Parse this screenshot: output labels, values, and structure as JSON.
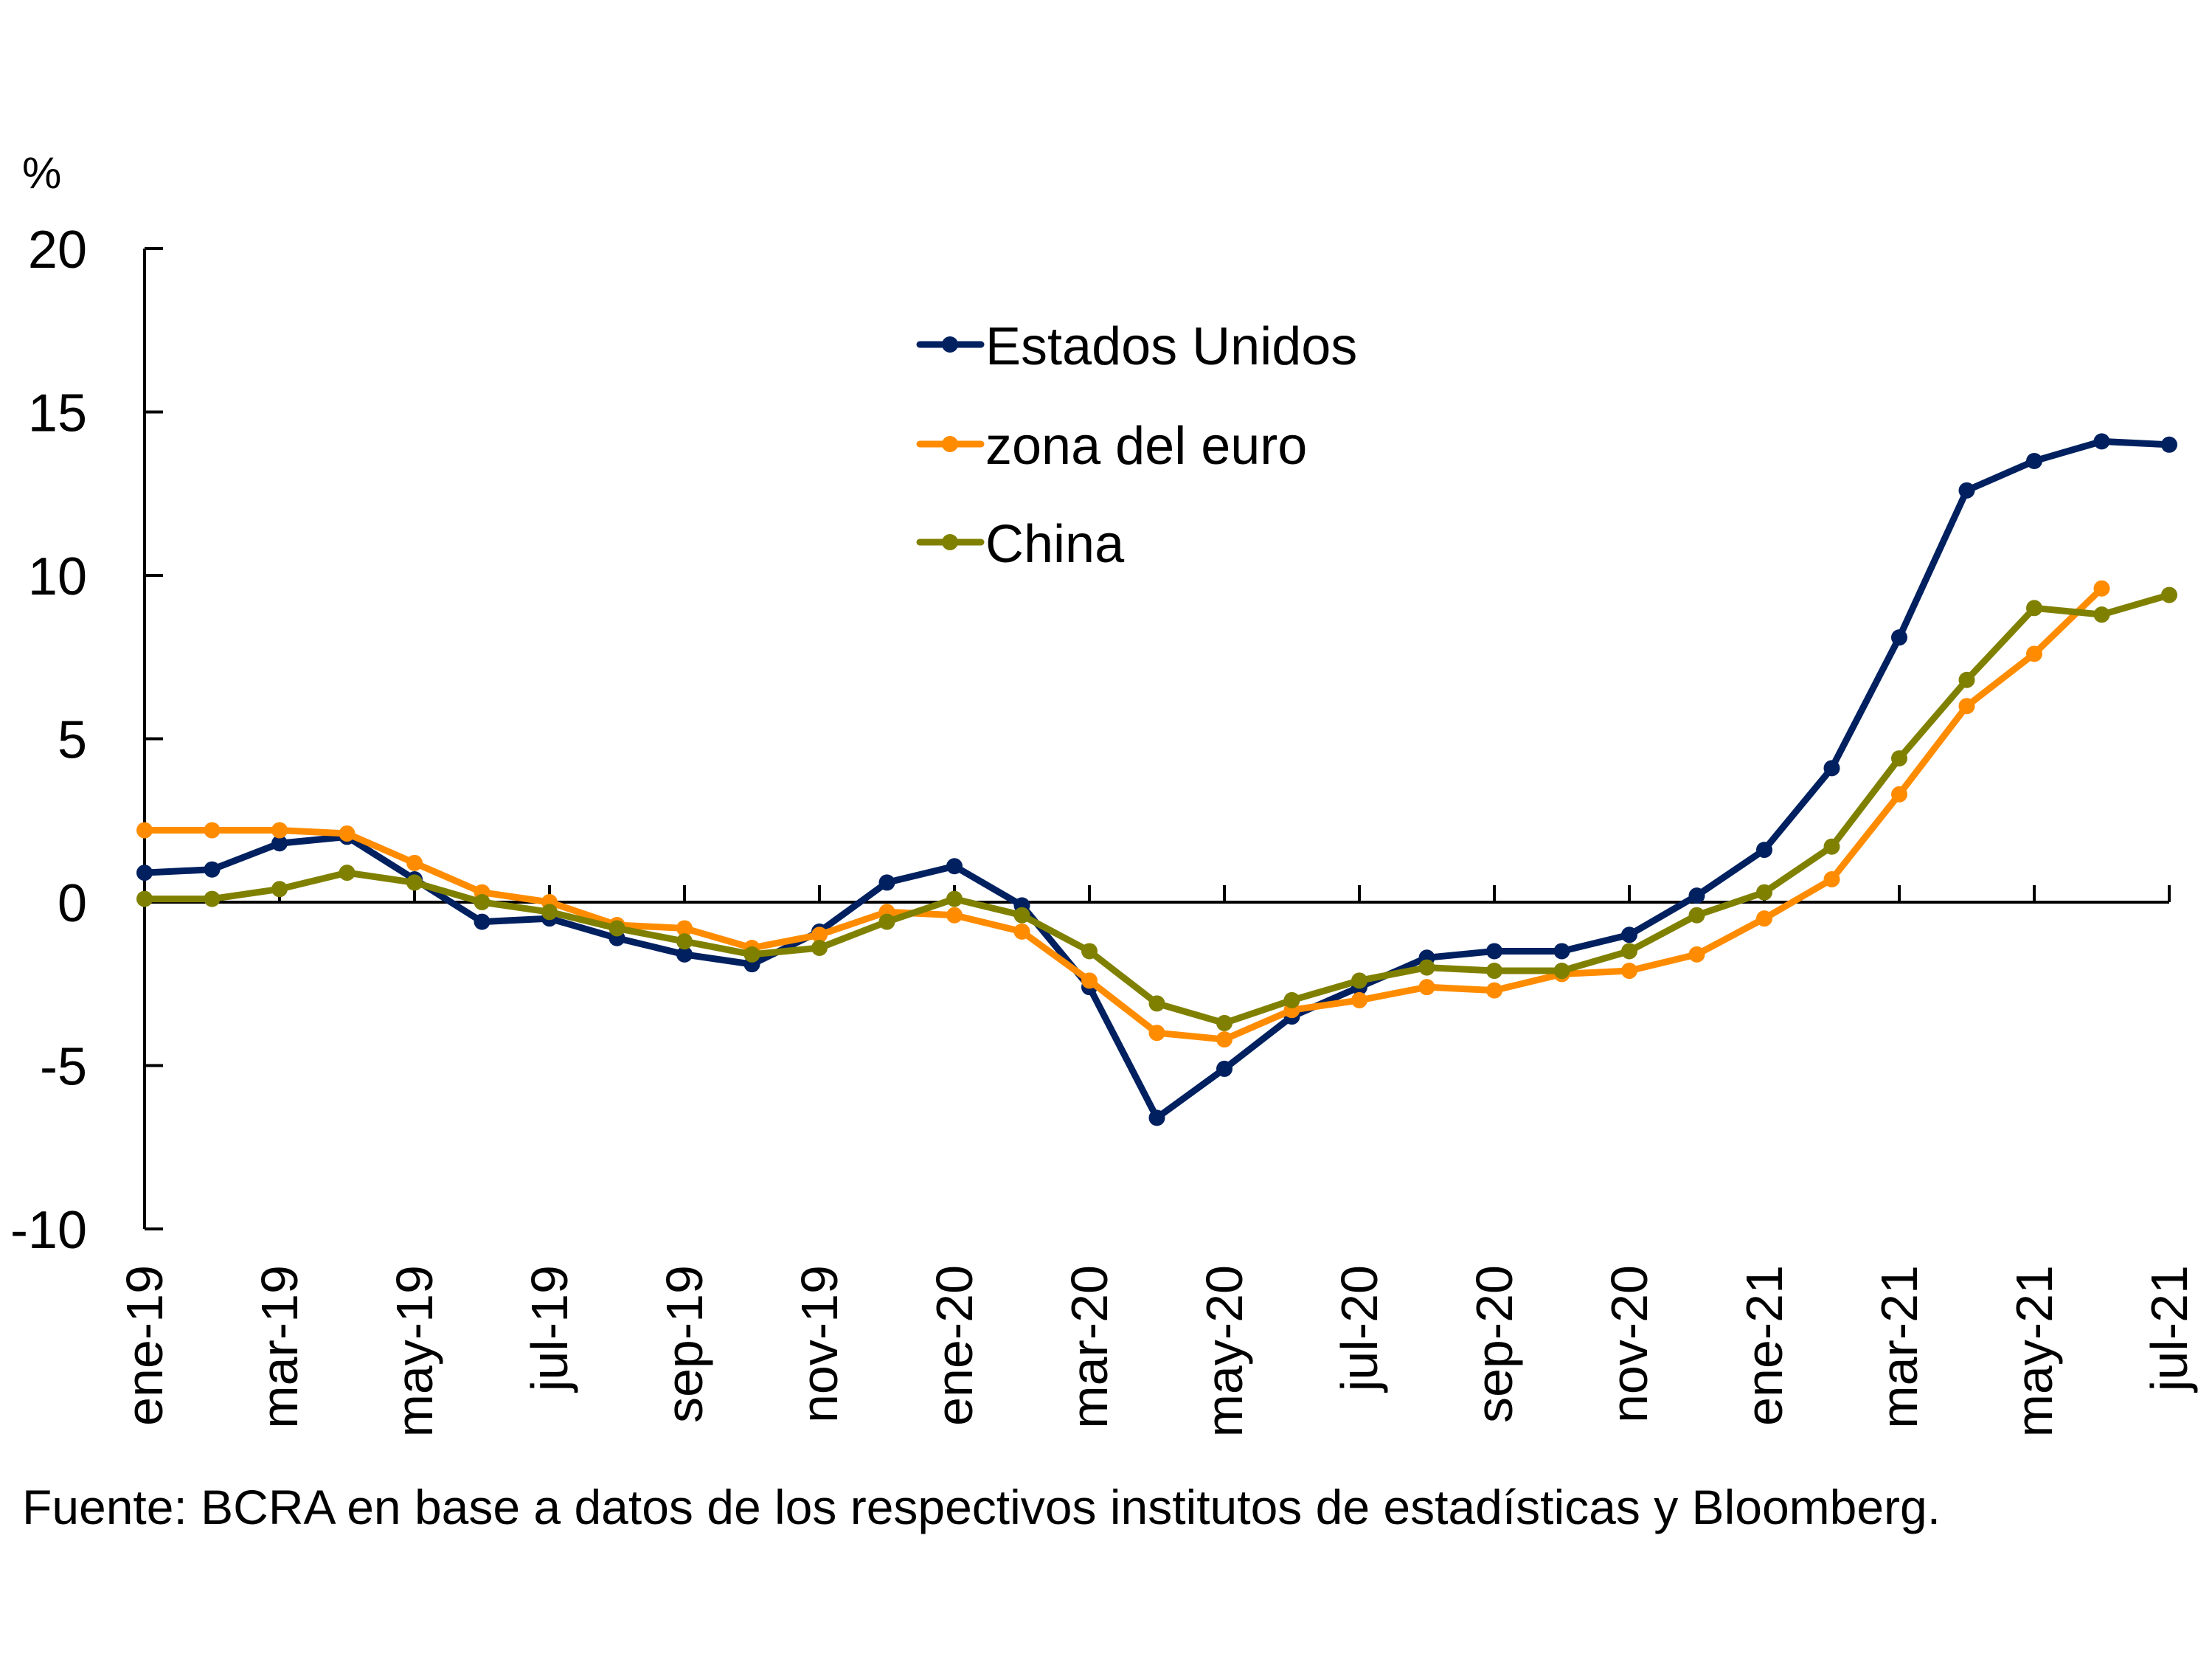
{
  "chart_data": {
    "type": "line",
    "title": "",
    "ylabel": "%",
    "xlabel": "",
    "ylim": [
      -10,
      20
    ],
    "yticks": [
      20,
      15,
      10,
      5,
      0,
      -5,
      -10
    ],
    "ytick_labels": [
      "20",
      "15",
      "10",
      "5",
      "0",
      "-5",
      "-10"
    ],
    "x": [
      "ene-19",
      "feb-19",
      "mar-19",
      "abr-19",
      "may-19",
      "jun-19",
      "jul-19",
      "ago-19",
      "sep-19",
      "oct-19",
      "nov-19",
      "dic-19",
      "ene-20",
      "feb-20",
      "mar-20",
      "abr-20",
      "may-20",
      "jun-20",
      "jul-20",
      "ago-20",
      "sep-20",
      "oct-20",
      "nov-20",
      "dic-20",
      "ene-21",
      "feb-21",
      "mar-21",
      "abr-21",
      "may-21",
      "jun-21",
      "jul-21"
    ],
    "xtick_labels": [
      "ene-19",
      "mar-19",
      "may-19",
      "jul-19",
      "sep-19",
      "nov-19",
      "ene-20",
      "mar-20",
      "may-20",
      "jul-20",
      "sep-20",
      "nov-20",
      "ene-21",
      "mar-21",
      "may-21",
      "jul-21"
    ],
    "grid": false,
    "legend_position": "top-center",
    "series": [
      {
        "name": "Estados Unidos",
        "color": "#002060",
        "values": [
          0.9,
          1.0,
          1.8,
          2.0,
          0.7,
          -0.6,
          -0.5,
          -1.1,
          -1.6,
          -1.9,
          -0.9,
          0.6,
          1.1,
          -0.1,
          -2.6,
          -6.6,
          -5.1,
          -3.5,
          -2.6,
          -1.7,
          -1.5,
          -1.5,
          -1.0,
          0.2,
          1.6,
          4.1,
          8.1,
          12.6,
          13.5,
          14.1,
          14.0
        ]
      },
      {
        "name": "zona del euro",
        "color": "#FF8C00",
        "values": [
          2.2,
          2.2,
          2.2,
          2.1,
          1.2,
          0.3,
          0.0,
          -0.7,
          -0.8,
          -1.4,
          -1.0,
          -0.3,
          -0.4,
          -0.9,
          -2.4,
          -4.0,
          -4.2,
          -3.3,
          -3.0,
          -2.6,
          -2.7,
          -2.2,
          -2.1,
          -1.6,
          -0.5,
          0.7,
          3.3,
          6.0,
          7.6,
          9.6,
          null
        ]
      },
      {
        "name": "China",
        "color": "#808000",
        "values": [
          0.1,
          0.1,
          0.4,
          0.9,
          0.6,
          0.0,
          -0.3,
          -0.8,
          -1.2,
          -1.6,
          -1.4,
          -0.6,
          0.1,
          -0.4,
          -1.5,
          -3.1,
          -3.7,
          -3.0,
          -2.4,
          -2.0,
          -2.1,
          -2.1,
          -1.5,
          -0.4,
          0.3,
          1.7,
          4.4,
          6.8,
          9.0,
          8.8,
          9.4
        ]
      }
    ]
  },
  "source_note": "Fuente: BCRA en base a datos de los respectivos institutos de estadísticas y Bloomberg."
}
